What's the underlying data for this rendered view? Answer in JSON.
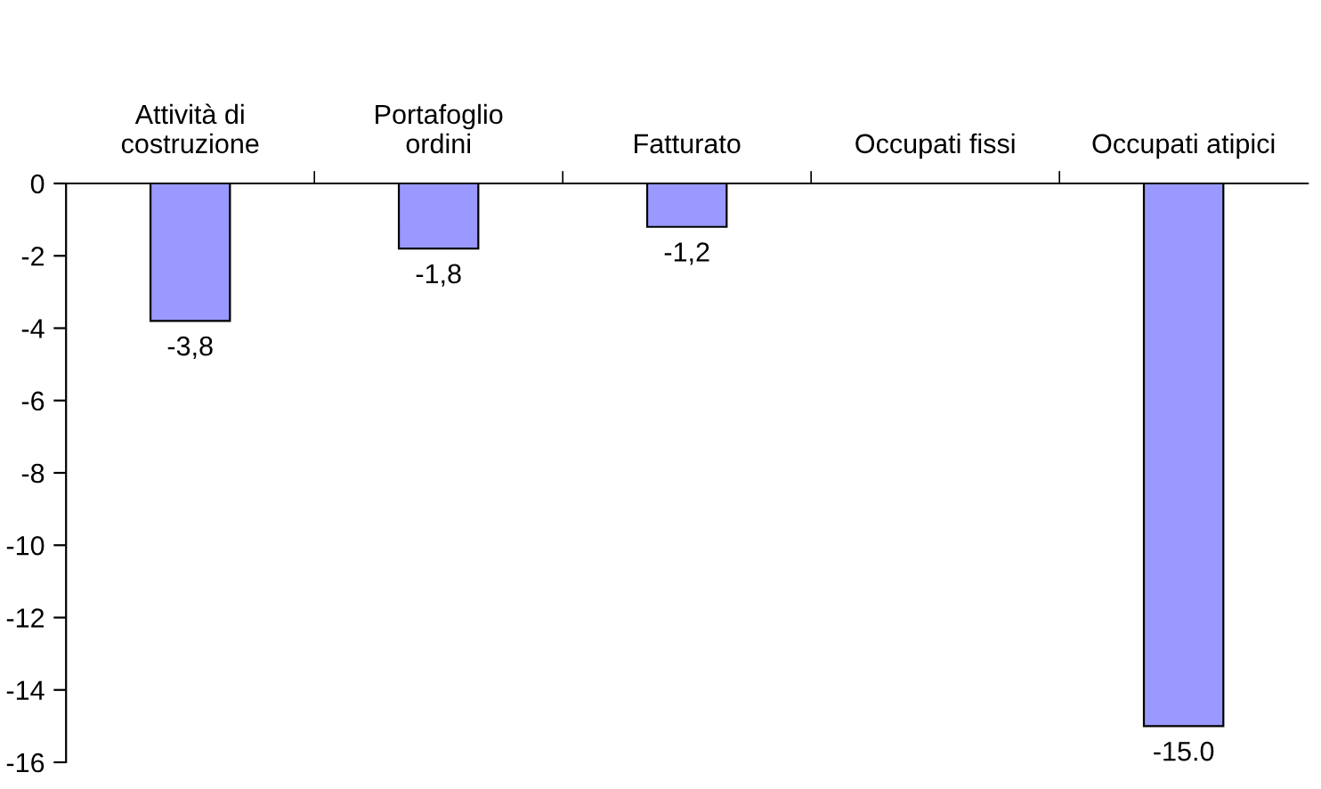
{
  "chart_data": {
    "type": "bar",
    "categories": [
      "Attività di\ncostruzione",
      "Portafoglio\nordini",
      "Fatturato",
      "Occupati fissi",
      "Occupati atipici"
    ],
    "values": [
      -3.8,
      -1.8,
      -1.2,
      null,
      -15.0
    ],
    "value_labels": [
      "-3,8",
      "-1,8",
      "-1,2",
      null,
      "-15.0"
    ],
    "color": "#9999ff",
    "ylim": [
      -16,
      0
    ],
    "yticks": [
      0,
      -2,
      -4,
      -6,
      -8,
      -10,
      -12,
      -14,
      -16
    ],
    "grid": false,
    "legend": false
  }
}
